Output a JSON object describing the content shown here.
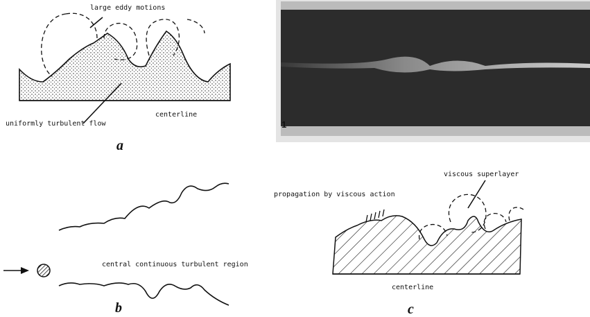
{
  "panels": [
    {
      "label": "a",
      "texts": [
        "large eddy motions",
        "uniformly turbulent flow",
        "centerline"
      ]
    },
    {
      "photo_number": "1"
    },
    {
      "label": "b",
      "texts": [
        "central continuous turbulent region"
      ]
    },
    {
      "label": "c",
      "texts": [
        "propagation by viscous action",
        "viscous superlayer",
        "centerline"
      ]
    }
  ]
}
